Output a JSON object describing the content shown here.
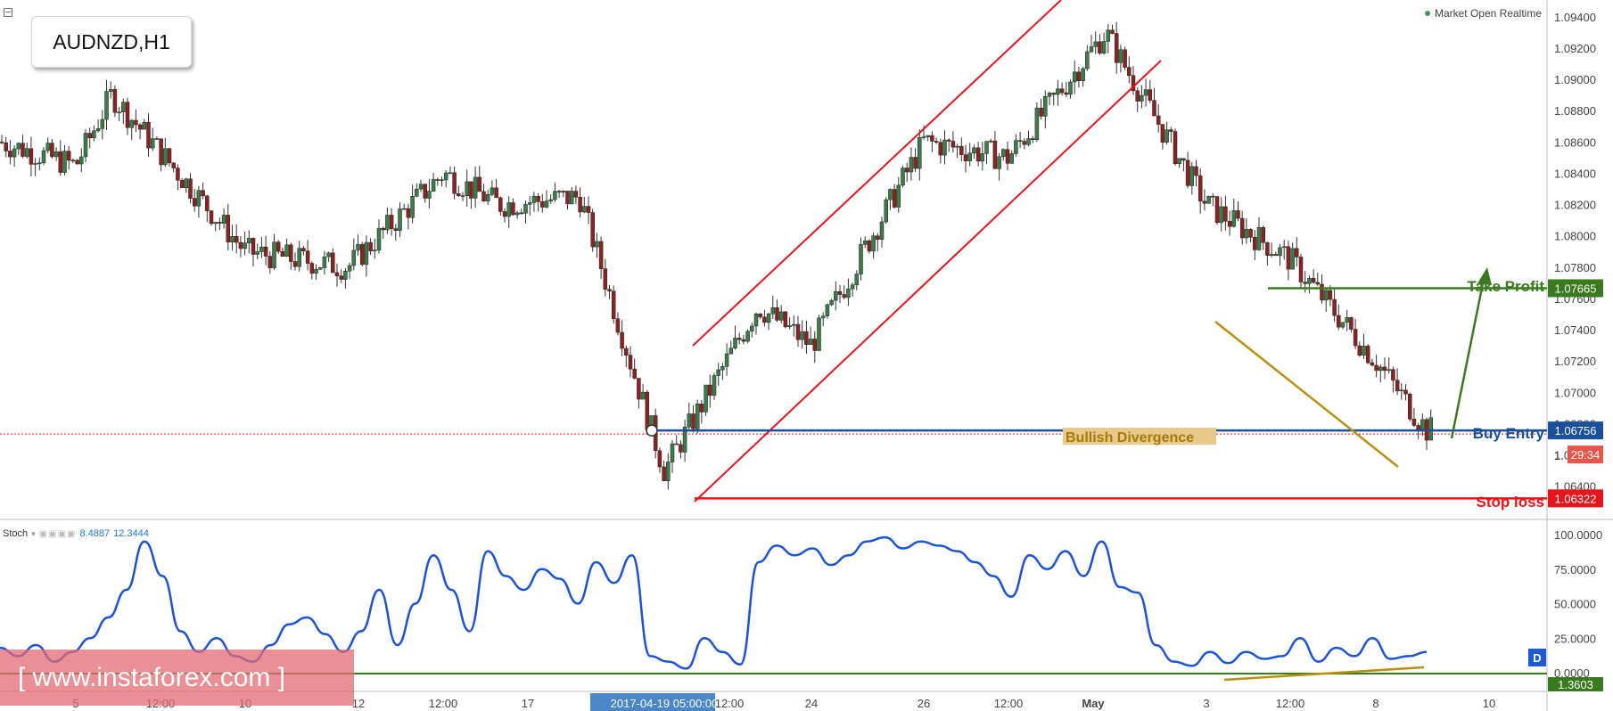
{
  "symbol": "AUDNZD,H1",
  "market_status": "Market Open Realtime",
  "watermark": "[ www.instaforex.com ]",
  "stoch_panel": {
    "name": "Stoch",
    "value_k": "8.4887",
    "value_d": "12.3444",
    "badge": "D"
  },
  "annotations": {
    "take_profit": "Take Profit",
    "buy_entry": "Buy Entry",
    "stop_loss": "Stop loss",
    "bullish_divergence": "Bullish Divergence"
  },
  "price_tags": {
    "take_profit": "1.07665",
    "buy_entry": "1.06756",
    "stop_loss": "1.06322",
    "countdown": "29:34",
    "countdown_prefix": "1.",
    "stoch_level": "1.3603"
  },
  "colors": {
    "bull_candle": "#3b7d4a",
    "bear_candle": "#8b2323",
    "take_profit": "#3a7a1e",
    "buy_entry": "#1a4f9c",
    "stop_loss": "#e8141c",
    "channel": "#e8141c",
    "divergence": "#b8900f",
    "stoch_line": "#1a53d6",
    "time_highlight": "#4a86c8"
  },
  "chart_data": [
    {
      "type": "candlestick",
      "title": "AUDNZD,H1",
      "y_axis": {
        "range": [
          1.0625,
          1.0945
        ],
        "ticks": [
          "1.09400",
          "1.09200",
          "1.09000",
          "1.08800",
          "1.08600",
          "1.08400",
          "1.08200",
          "1.08000",
          "1.07800",
          "1.07600",
          "1.07400",
          "1.07200",
          "1.07000",
          "1.06800",
          "1.06600",
          "1.06400"
        ]
      },
      "x_axis": {
        "tick_labels": [
          "5",
          "12:00",
          "10",
          "12",
          "12:00",
          "17",
          "2017-04-19 05:00:00",
          "12:00",
          "24",
          "26",
          "12:00",
          "May",
          "3",
          "12:00",
          "8",
          "10"
        ]
      },
      "series_close_approx": [
        {
          "x": "start",
          "y": 1.086
        },
        {
          "x": "5",
          "y": 1.0845
        },
        {
          "x": "12:00",
          "y": 1.089
        },
        {
          "x": "10",
          "y": 1.079
        },
        {
          "x": "12",
          "y": 1.078
        },
        {
          "x": "12:00",
          "y": 1.084
        },
        {
          "x": "17",
          "y": 1.082
        },
        {
          "x": "17",
          "y": 1.0825
        },
        {
          "x": "2017-04-19 05:00:00",
          "y": 1.0677
        },
        {
          "x": "2017-04-19 05:00:00",
          "y": 1.065
        },
        {
          "x": "12:00",
          "y": 1.0755
        },
        {
          "x": "24",
          "y": 1.073
        },
        {
          "x": "26",
          "y": 1.086
        },
        {
          "x": "12:00",
          "y": 1.085
        },
        {
          "x": "May",
          "y": 1.093
        },
        {
          "x": "May",
          "y": 1.0905
        },
        {
          "x": "3",
          "y": 1.082
        },
        {
          "x": "12:00",
          "y": 1.0785
        },
        {
          "x": "8",
          "y": 1.072
        },
        {
          "x": "8",
          "y": 1.0676
        }
      ],
      "levels": [
        {
          "name": "Take Profit",
          "price": 1.07665
        },
        {
          "name": "Buy Entry",
          "price": 1.06756
        },
        {
          "name": "Stop loss",
          "price": 1.06322
        }
      ]
    },
    {
      "type": "line",
      "title": "Stoch",
      "y_axis": {
        "range": [
          0,
          100
        ],
        "ticks": [
          "100.0000",
          "75.0000",
          "50.0000",
          "25.0000",
          "0.0000"
        ]
      },
      "series": [
        {
          "name": "Stoch",
          "values": [
            18,
            12,
            20,
            8,
            15,
            25,
            40,
            60,
            95,
            70,
            30,
            15,
            25,
            12,
            8,
            20,
            35,
            40,
            28,
            15,
            30,
            60,
            20,
            50,
            85,
            60,
            30,
            88,
            70,
            60,
            75,
            68,
            50,
            80,
            65,
            85,
            12,
            8,
            3,
            25,
            15,
            6,
            80,
            92,
            85,
            90,
            78,
            85,
            95,
            98,
            90,
            95,
            92,
            88,
            80,
            70,
            55,
            85,
            75,
            88,
            70,
            95,
            62,
            58,
            20,
            8,
            5,
            15,
            7,
            15,
            10,
            12,
            25,
            8,
            18,
            12,
            25,
            10,
            12,
            15
          ]
        }
      ],
      "current_k": 8.4887,
      "current_d": 12.3444
    }
  ]
}
